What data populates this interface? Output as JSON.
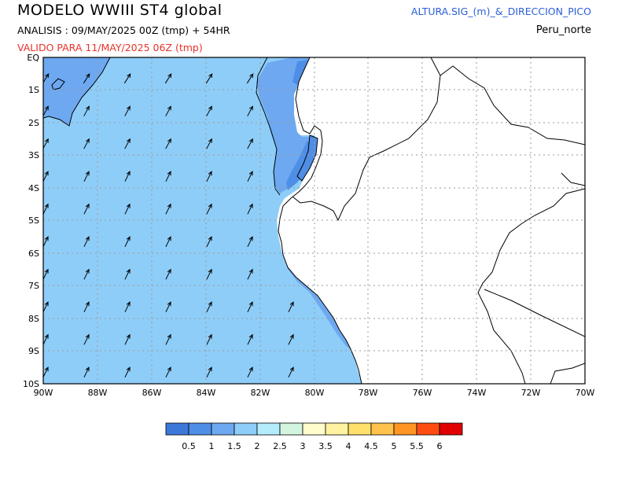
{
  "header": {
    "title": "MODELO  WWIII  ST4  global",
    "analysis": "ANALISIS : 09/MAY/2025 00Z  (tmp) + 54HR",
    "valid": "VALIDO PARA  11/MAY/2025 06Z  (tmp)",
    "product": "ALTURA.SIG_(m)_&_DIRECCION_PICO",
    "region": "Peru_norte"
  },
  "map": {
    "lon_range": [
      -90,
      -70
    ],
    "lat_range": [
      -10,
      0
    ],
    "grid": true,
    "x_ticks": [
      "90W",
      "88W",
      "86W",
      "84W",
      "82W",
      "80W",
      "78W",
      "76W",
      "74W",
      "72W",
      "70W"
    ],
    "y_ticks": [
      "EQ",
      "1S",
      "2S",
      "3S",
      "4S",
      "5S",
      "6S",
      "7S",
      "8S",
      "9S",
      "10S"
    ],
    "arrow_icon": "wave-direction-arrow-icon",
    "colors": {
      "land": "#ffffff",
      "frame": "#000000",
      "grid": "#9a9a9a"
    }
  },
  "legend": {
    "labels": [
      "0.5",
      "1",
      "1.5",
      "2",
      "2.5",
      "3",
      "3.5",
      "4",
      "4.5",
      "5",
      "5.5",
      "6"
    ],
    "colors": [
      "#3c78d8",
      "#4f8ee6",
      "#6da8f0",
      "#8ecdf8",
      "#b4ecfc",
      "#d3f4de",
      "#fffdcc",
      "#fff2a0",
      "#ffe06a",
      "#ffc24c",
      "#ff9624",
      "#ff4d12",
      "#e00000"
    ]
  }
}
